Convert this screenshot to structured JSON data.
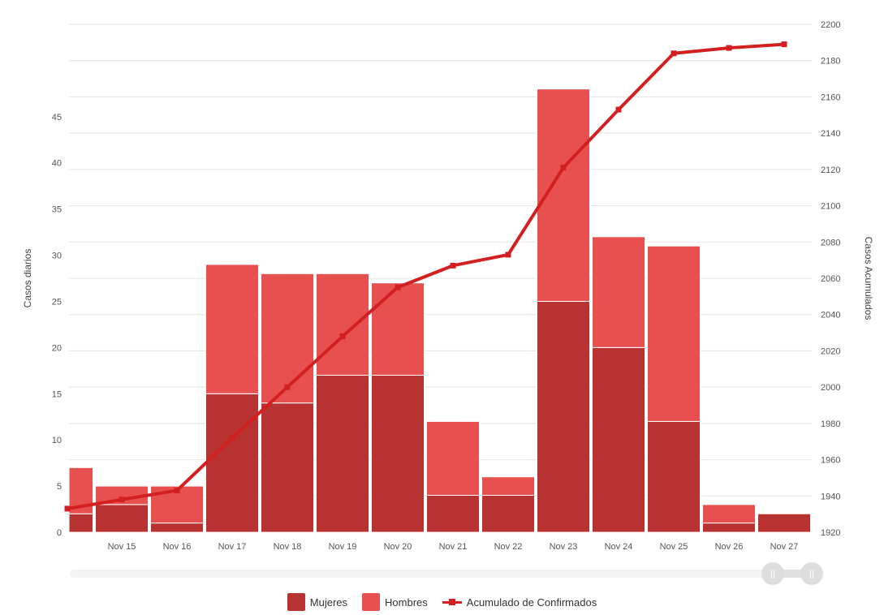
{
  "chart_data": {
    "type": "bar",
    "stacked": true,
    "categories": [
      "",
      "Nov 15",
      "Nov 16",
      "Nov 17",
      "Nov 18",
      "Nov 19",
      "Nov 20",
      "Nov 21",
      "Nov 22",
      "Nov 23",
      "Nov 24",
      "Nov 25",
      "Nov 26",
      "Nov 27"
    ],
    "series": [
      {
        "name": "Mujeres",
        "type": "bar",
        "color": "#b83232",
        "values": [
          2,
          3,
          1,
          15,
          14,
          17,
          17,
          4,
          4,
          25,
          20,
          12,
          1,
          2
        ]
      },
      {
        "name": "Hombres",
        "type": "bar",
        "color": "#e85050",
        "values": [
          5,
          2,
          4,
          14,
          14,
          11,
          10,
          8,
          2,
          23,
          12,
          19,
          2,
          0
        ]
      },
      {
        "name": "Acumulado de Confirmados",
        "type": "line",
        "axis": "right",
        "color": "#d31f1f",
        "values": [
          1933,
          1938,
          1943,
          1972,
          2000,
          2028,
          2055,
          2067,
          2073,
          2121,
          2153,
          2184,
          2187,
          2189
        ]
      }
    ],
    "y_left": {
      "label": "Casos diarios",
      "ticks": [
        0,
        5,
        10,
        15,
        20,
        25,
        30,
        35,
        40,
        45
      ],
      "range": [
        0,
        55
      ]
    },
    "y_right": {
      "label": "Casos Acumulados",
      "ticks": [
        1920,
        1940,
        1960,
        1980,
        2000,
        2020,
        2040,
        2060,
        2080,
        2100,
        2120,
        2140,
        2160,
        2180,
        2200
      ],
      "range": [
        1920,
        2200
      ]
    },
    "grid": true,
    "legend": "bottom-center"
  },
  "legend": {
    "mujeres": "Mujeres",
    "hombres": "Hombres",
    "acumulado": "Acumulado de Confirmados"
  }
}
